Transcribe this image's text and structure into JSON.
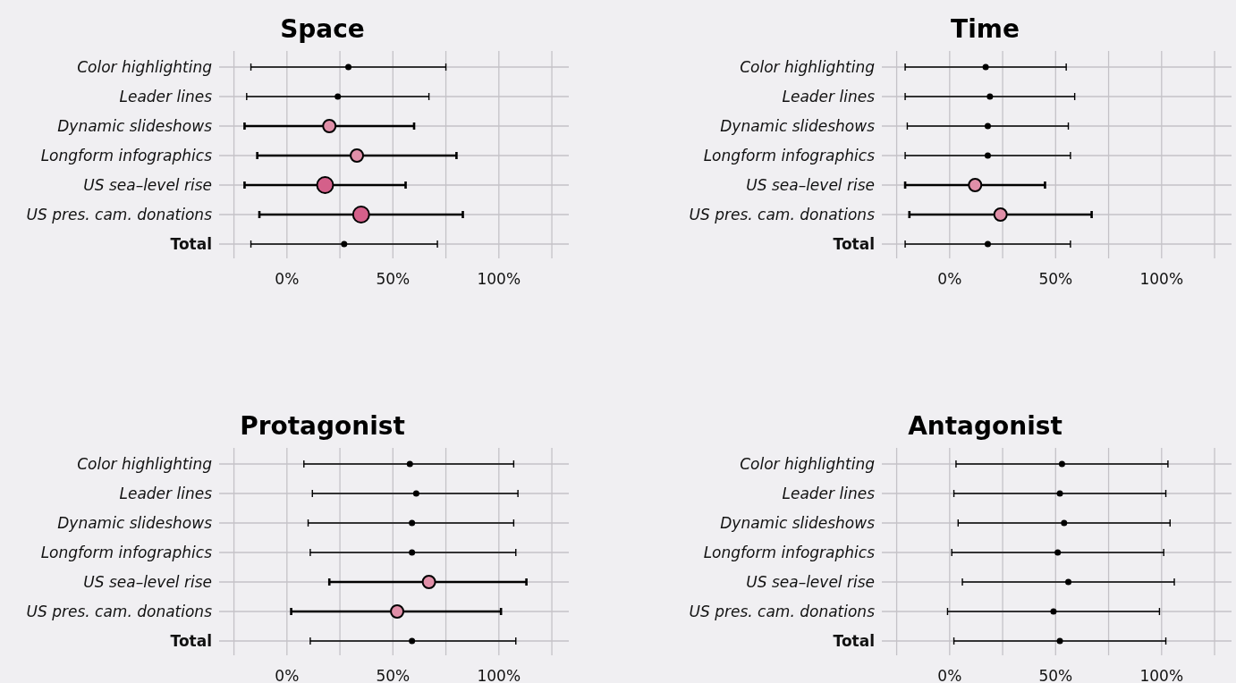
{
  "chart_data": [
    {
      "type": "scatter",
      "orientation": "horizontal",
      "title": "Space",
      "marker": "circle",
      "grid": true,
      "categories": [
        "Color highlighting",
        "Leader lines",
        "Dynamic slideshows",
        "Longform infographics",
        "US sea–level rise",
        "US pres. cam. donations",
        "Total"
      ],
      "values": [
        29,
        24,
        20,
        33,
        18,
        35,
        27
      ],
      "errors": [
        [
          -17,
          75
        ],
        [
          -19,
          67
        ],
        [
          -20,
          60
        ],
        [
          -14,
          80
        ],
        [
          -20,
          56
        ],
        [
          -13,
          83
        ],
        [
          -17,
          71
        ]
      ],
      "colors": [
        "#000000",
        "#000000",
        "#e08fa8",
        "#e08fa8",
        "#d4608a",
        "#d4608a",
        "#000000"
      ],
      "xlim": [
        -32,
        133
      ],
      "xticks": [
        {
          "value": -25,
          "label": null
        },
        {
          "value": 0,
          "label": "0%"
        },
        {
          "value": 25,
          "label": null
        },
        {
          "value": 50,
          "label": "50%"
        },
        {
          "value": 75,
          "label": null
        },
        {
          "value": 100,
          "label": "100%"
        },
        {
          "value": 125,
          "label": null
        }
      ]
    },
    {
      "type": "scatter",
      "orientation": "horizontal",
      "title": "Time",
      "marker": "circle",
      "grid": true,
      "categories": [
        "Color highlighting",
        "Leader lines",
        "Dynamic slideshows",
        "Longform infographics",
        "US sea–level rise",
        "US pres. cam. donations",
        "Total"
      ],
      "values": [
        17,
        19,
        18,
        18,
        12,
        24,
        18
      ],
      "errors": [
        [
          -21,
          55
        ],
        [
          -21,
          59
        ],
        [
          -20,
          56
        ],
        [
          -21,
          57
        ],
        [
          -21,
          45
        ],
        [
          -19,
          67
        ],
        [
          -21,
          57
        ]
      ],
      "colors": [
        "#000000",
        "#000000",
        "#000000",
        "#000000",
        "#e08fa8",
        "#e08fa8",
        "#000000"
      ],
      "xlim": [
        -32,
        133
      ],
      "xticks": [
        {
          "value": -25,
          "label": null
        },
        {
          "value": 0,
          "label": "0%"
        },
        {
          "value": 25,
          "label": null
        },
        {
          "value": 50,
          "label": "50%"
        },
        {
          "value": 75,
          "label": null
        },
        {
          "value": 100,
          "label": "100%"
        },
        {
          "value": 125,
          "label": null
        }
      ]
    },
    {
      "type": "scatter",
      "orientation": "horizontal",
      "title": "Protagonist",
      "marker": "circle",
      "grid": true,
      "categories": [
        "Color highlighting",
        "Leader lines",
        "Dynamic slideshows",
        "Longform infographics",
        "US sea–level rise",
        "US pres. cam. donations",
        "Total"
      ],
      "values": [
        58,
        61,
        59,
        59,
        67,
        52,
        59
      ],
      "errors": [
        [
          8,
          107
        ],
        [
          12,
          109
        ],
        [
          10,
          107
        ],
        [
          11,
          108
        ],
        [
          20,
          113
        ],
        [
          2,
          101
        ],
        [
          11,
          108
        ]
      ],
      "colors": [
        "#000000",
        "#000000",
        "#000000",
        "#000000",
        "#e08fa8",
        "#e08fa8",
        "#000000"
      ],
      "xlim": [
        -32,
        133
      ],
      "xticks": [
        {
          "value": -25,
          "label": null
        },
        {
          "value": 0,
          "label": "0%"
        },
        {
          "value": 25,
          "label": null
        },
        {
          "value": 50,
          "label": "50%"
        },
        {
          "value": 75,
          "label": null
        },
        {
          "value": 100,
          "label": "100%"
        },
        {
          "value": 125,
          "label": null
        }
      ]
    },
    {
      "type": "scatter",
      "orientation": "horizontal",
      "title": "Antagonist",
      "marker": "circle",
      "grid": true,
      "categories": [
        "Color highlighting",
        "Leader lines",
        "Dynamic slideshows",
        "Longform infographics",
        "US sea–level rise",
        "US pres. cam. donations",
        "Total"
      ],
      "values": [
        53,
        52,
        54,
        51,
        56,
        49,
        52
      ],
      "errors": [
        [
          3,
          103
        ],
        [
          2,
          102
        ],
        [
          4,
          104
        ],
        [
          1,
          101
        ],
        [
          6,
          106
        ],
        [
          -1,
          99
        ],
        [
          2,
          102
        ]
      ],
      "colors": [
        "#000000",
        "#000000",
        "#000000",
        "#000000",
        "#000000",
        "#000000",
        "#000000"
      ],
      "xlim": [
        -32,
        133
      ],
      "xticks": [
        {
          "value": -25,
          "label": null
        },
        {
          "value": 0,
          "label": "0%"
        },
        {
          "value": 25,
          "label": null
        },
        {
          "value": 50,
          "label": "50%"
        },
        {
          "value": 75,
          "label": null
        },
        {
          "value": 100,
          "label": "100%"
        },
        {
          "value": 125,
          "label": null
        }
      ]
    }
  ]
}
